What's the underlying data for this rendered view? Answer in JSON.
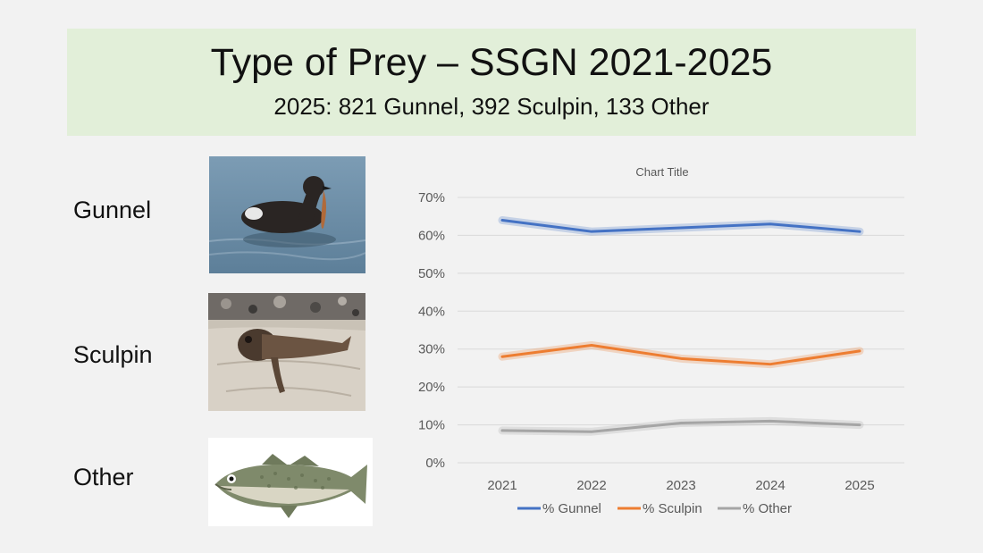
{
  "slide": {
    "title": "Type of Prey – SSGN 2021-2025",
    "subtitle": "2025: 821 Gunnel, 392 Sculpin, 133 Other"
  },
  "prey": [
    {
      "label": "Gunnel",
      "icon": "guillemot-with-gunnel-photo"
    },
    {
      "label": "Sculpin",
      "icon": "sculpin-photo"
    },
    {
      "label": "Other",
      "icon": "cod-fish-photo"
    }
  ],
  "colors": {
    "banner": "#e2efd9",
    "gunnel": "#4472c4",
    "sculpin": "#ed7d31",
    "other": "#a5a5a5",
    "grid": "#d9d9d9",
    "axis_text": "#595959"
  },
  "chart_data": {
    "type": "line",
    "title": "Chart Title",
    "xlabel": "",
    "ylabel": "",
    "x": [
      "2021",
      "2022",
      "2023",
      "2024",
      "2025"
    ],
    "ylim": [
      0,
      70
    ],
    "yticks": [
      "0%",
      "10%",
      "20%",
      "30%",
      "40%",
      "50%",
      "60%",
      "70%"
    ],
    "y_tick_values": [
      0,
      10,
      20,
      30,
      40,
      50,
      60,
      70
    ],
    "grid": true,
    "legend_position": "bottom",
    "series": [
      {
        "name": "% Gunnel",
        "values": [
          64,
          61,
          62,
          63,
          61
        ],
        "color": "#4472c4"
      },
      {
        "name": "% Sculpin",
        "values": [
          28,
          31,
          27.5,
          26,
          29.5
        ],
        "color": "#ed7d31"
      },
      {
        "name": "% Other",
        "values": [
          8.5,
          8.2,
          10.5,
          11,
          10
        ],
        "color": "#a5a5a5"
      }
    ]
  }
}
